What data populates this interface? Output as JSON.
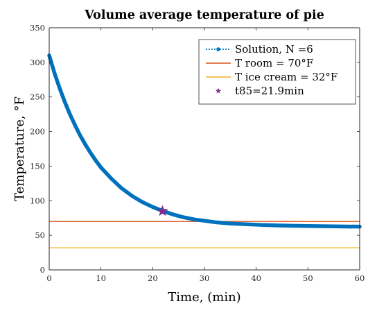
{
  "chart_data": {
    "type": "line",
    "title": "Volume average temperature of pie",
    "xlabel": "Time, (min)",
    "ylabel": "Temperature, °F",
    "xlim": [
      0,
      60
    ],
    "ylim": [
      0,
      350
    ],
    "xticks": [
      0,
      10,
      20,
      30,
      40,
      50,
      60
    ],
    "yticks": [
      0,
      50,
      100,
      150,
      200,
      250,
      300,
      350
    ],
    "grid": false,
    "legend_position": "top-right",
    "series": [
      {
        "name": "Solution, N =6",
        "kind": "line",
        "color": "#0072BD",
        "x": [
          0,
          1,
          2,
          3,
          4,
          5,
          6,
          7,
          8,
          9,
          10,
          12,
          14,
          16,
          18,
          20,
          22,
          24,
          26,
          28,
          30,
          32,
          35,
          38,
          41,
          44,
          47,
          50,
          55,
          60
        ],
        "values": [
          310,
          285,
          263,
          243,
          225,
          209,
          194,
          181,
          169,
          158,
          148,
          132,
          118,
          107,
          98,
          91,
          85,
          80,
          76,
          73,
          71,
          69,
          67,
          66,
          65,
          64.3,
          63.8,
          63.4,
          62.9,
          62.5
        ]
      },
      {
        "name": "T room = 70°F",
        "kind": "hline",
        "color": "#D95319",
        "value": 70
      },
      {
        "name": "T ice cream = 32°F",
        "kind": "hline",
        "color": "#EDB120",
        "value": 32
      },
      {
        "name": "t85=21.9min",
        "kind": "marker",
        "color": "#7E2F8E",
        "x": 21.9,
        "value": 85
      }
    ]
  }
}
